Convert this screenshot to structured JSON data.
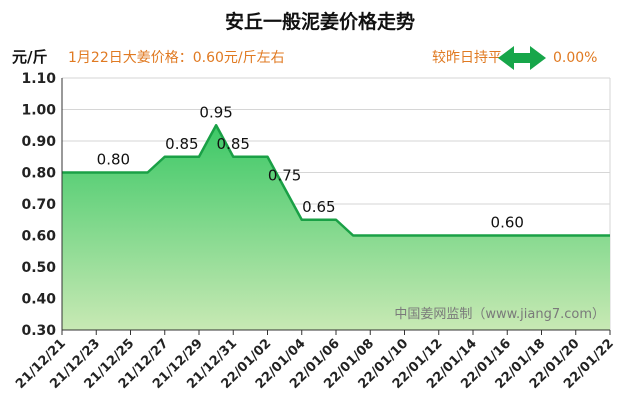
{
  "chart_data": {
    "type": "area",
    "title": "安丘一般泥姜价格走势",
    "ylabel": "元/斤",
    "subtitle_left": "1月22日大姜价格：0.60元/斤左右",
    "subtitle_right_text": "较昨日持平",
    "subtitle_right_value": "0.00%",
    "watermark": "中国姜网监制（www.jiang7.com）",
    "ylim": [
      0.3,
      1.1
    ],
    "yticks": [
      "0.30",
      "0.40",
      "0.50",
      "0.60",
      "0.70",
      "0.80",
      "0.90",
      "1.00",
      "1.10"
    ],
    "x": [
      "21/12/21",
      "21/12/22",
      "21/12/23",
      "21/12/24",
      "21/12/25",
      "21/12/26",
      "21/12/27",
      "21/12/28",
      "21/12/29",
      "21/12/30",
      "21/12/31",
      "22/01/01",
      "22/01/02",
      "22/01/03",
      "22/01/04",
      "22/01/05",
      "22/01/06",
      "22/01/07",
      "22/01/08",
      "22/01/09",
      "22/01/10",
      "22/01/11",
      "22/01/12",
      "22/01/13",
      "22/01/14",
      "22/01/15",
      "22/01/16",
      "22/01/17",
      "22/01/18",
      "22/01/19",
      "22/01/20",
      "22/01/21",
      "22/01/22"
    ],
    "xtick_labels": [
      "21/12/21",
      "21/12/23",
      "21/12/25",
      "21/12/27",
      "21/12/29",
      "21/12/31",
      "22/01/02",
      "22/01/04",
      "22/01/06",
      "22/01/08",
      "22/01/10",
      "22/01/12",
      "22/01/14",
      "22/01/16",
      "22/01/18",
      "22/01/20",
      "22/01/22"
    ],
    "values": [
      0.8,
      0.8,
      0.8,
      0.8,
      0.8,
      0.8,
      0.85,
      0.85,
      0.85,
      0.95,
      0.85,
      0.85,
      0.85,
      0.75,
      0.65,
      0.65,
      0.65,
      0.6,
      0.6,
      0.6,
      0.6,
      0.6,
      0.6,
      0.6,
      0.6,
      0.6,
      0.6,
      0.6,
      0.6,
      0.6,
      0.6,
      0.6,
      0.6
    ],
    "data_labels": [
      {
        "x": "21/12/24",
        "label": "0.80"
      },
      {
        "x": "21/12/28",
        "label": "0.85"
      },
      {
        "x": "21/12/30",
        "label": "0.95"
      },
      {
        "x": "21/12/31",
        "label": "0.85"
      },
      {
        "x": "22/01/03",
        "label": "0.75"
      },
      {
        "x": "22/01/05",
        "label": "0.65"
      },
      {
        "x": "22/01/16",
        "label": "0.60"
      }
    ],
    "grid": "horizontal",
    "colors": {
      "line": "#1aa046",
      "fill_top": "#3cc866",
      "fill_bottom": "#c8e9b4",
      "note": "#e07a22",
      "arrow": "#17a64a",
      "grid": "#d6d6d6"
    }
  }
}
